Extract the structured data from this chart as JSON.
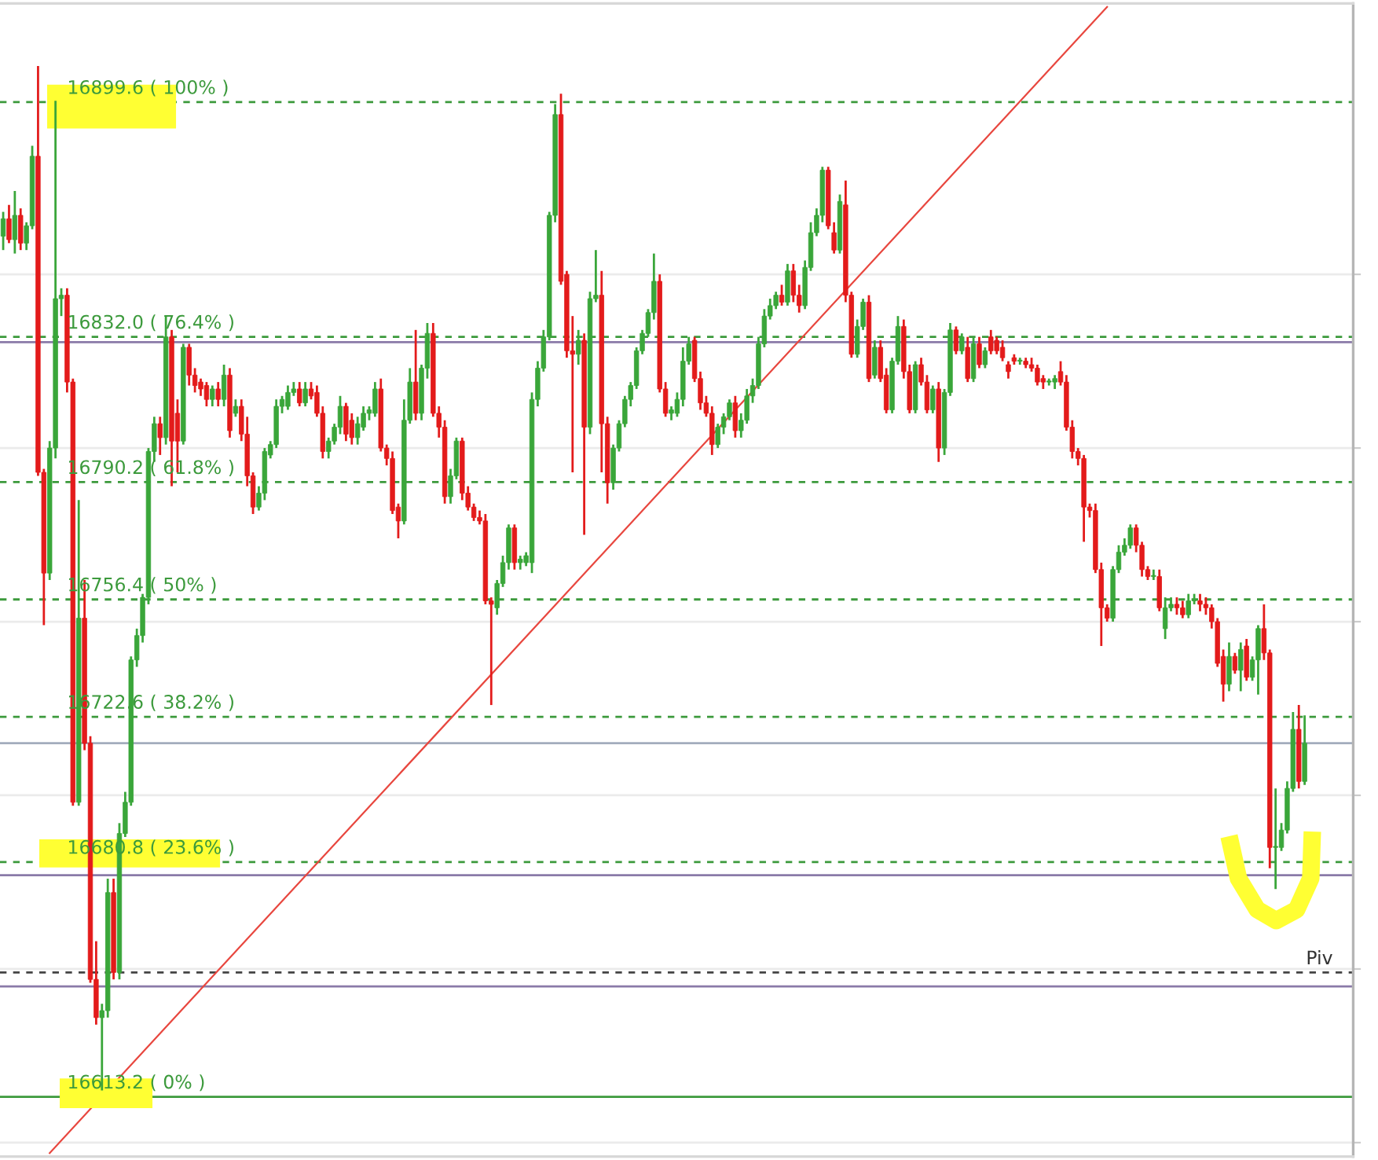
{
  "chart_data": {
    "type": "candlestick",
    "categories": [
      null,
      null,
      null,
      null,
      null,
      null,
      null,
      null,
      null,
      null,
      null,
      null,
      null,
      null,
      null,
      null,
      null,
      null,
      null,
      null,
      null,
      null,
      null,
      null,
      null,
      null,
      null,
      null,
      null,
      null,
      null,
      null,
      null,
      null,
      null,
      null,
      null,
      null,
      null,
      null,
      null,
      null,
      null,
      null,
      null,
      null,
      null,
      null,
      null,
      null,
      null,
      null,
      null,
      null,
      null,
      null,
      null,
      null,
      null,
      null,
      null,
      null,
      null,
      null,
      null,
      null,
      null,
      null,
      null,
      null,
      null,
      null,
      null,
      null,
      null,
      null,
      null,
      null,
      null,
      null,
      null,
      null,
      null,
      null,
      null,
      null,
      null,
      null,
      null,
      null,
      null,
      null,
      null,
      null,
      null,
      null,
      null,
      null,
      null,
      null,
      null,
      null,
      null,
      null,
      null,
      null,
      null,
      null,
      null,
      null,
      null,
      null,
      null,
      null,
      null,
      null,
      null,
      null,
      null,
      null,
      null,
      null,
      null,
      null,
      null,
      null,
      null,
      null,
      null,
      null,
      null,
      null,
      null,
      null,
      null,
      null,
      null,
      null,
      null,
      null,
      null,
      null,
      null,
      null,
      null,
      null,
      null,
      null,
      null,
      null,
      null,
      null,
      null,
      null,
      null,
      null,
      null,
      null,
      null,
      null,
      null,
      null,
      null,
      null,
      null,
      null,
      null,
      null,
      null,
      null,
      null,
      null,
      null,
      null,
      null,
      null,
      null,
      null,
      null,
      null,
      null,
      null,
      null,
      null,
      null,
      null,
      null,
      null,
      null,
      null,
      null,
      null,
      null,
      null,
      null,
      null,
      null,
      null,
      null,
      null,
      null,
      null,
      null,
      null,
      null,
      null,
      null,
      null,
      null,
      null,
      null,
      null,
      null,
      null,
      null,
      null,
      null,
      null,
      null,
      null,
      null,
      null,
      null,
      null,
      null
    ],
    "ohlc": [
      [
        16861,
        16868,
        16857,
        16866
      ],
      [
        16866,
        16870,
        16859,
        16860
      ],
      [
        16860,
        16874,
        16856,
        16867
      ],
      [
        16867,
        16869,
        16857,
        16859
      ],
      [
        16859,
        16865,
        16857,
        16864
      ],
      [
        16864,
        16887,
        16863,
        16884
      ],
      [
        16884,
        16910,
        16792,
        16793
      ],
      [
        16793,
        16794,
        16749,
        16764
      ],
      [
        16764,
        16802,
        16762,
        16800
      ],
      [
        16800,
        16900,
        16797,
        16843
      ],
      [
        16843,
        16846,
        16838,
        16844
      ],
      [
        16844,
        16846,
        16816,
        16819
      ],
      [
        16819,
        16820,
        16697,
        16698
      ],
      [
        16698,
        16785,
        16697,
        16751
      ],
      [
        16751,
        16762,
        16713,
        16715
      ],
      [
        16715,
        16717,
        16646,
        16647
      ],
      [
        16647,
        16658,
        16634,
        16636
      ],
      [
        16636,
        16640,
        16615,
        16638
      ],
      [
        16638,
        16676,
        16636,
        16672
      ],
      [
        16672,
        16676,
        16647,
        16649
      ],
      [
        16649,
        16692,
        16647,
        16689
      ],
      [
        16689,
        16701,
        16688,
        16698
      ],
      [
        16698,
        16740,
        16697,
        16739
      ],
      [
        16739,
        16748,
        16737,
        16746
      ],
      [
        16746,
        16758,
        16744,
        16757
      ],
      [
        16757,
        16800,
        16755,
        16799
      ],
      [
        16799,
        16809,
        16796,
        16807
      ],
      [
        16807,
        16809,
        16798,
        16803
      ],
      [
        16803,
        16838,
        16801,
        16832
      ],
      [
        16832,
        16834,
        16789,
        16802
      ],
      [
        16810,
        16814,
        16793,
        16802
      ],
      [
        16802,
        16830,
        16801,
        16829
      ],
      [
        16829,
        16830,
        16818,
        16821
      ],
      [
        16821,
        16823,
        16816,
        16818
      ],
      [
        16819,
        16820,
        16815,
        16817
      ],
      [
        16818,
        16819,
        16812,
        16814
      ],
      [
        16814,
        16818,
        16812,
        16817
      ],
      [
        16817,
        16819,
        16812,
        16814
      ],
      [
        16814,
        16824,
        16812,
        16821
      ],
      [
        16821,
        16823,
        16803,
        16805
      ],
      [
        16810,
        16814,
        16809,
        16812
      ],
      [
        16812,
        16814,
        16802,
        16804
      ],
      [
        16804,
        16809,
        16789,
        16792
      ],
      [
        16792,
        16793,
        16781,
        16783
      ],
      [
        16783,
        16789,
        16782,
        16787
      ],
      [
        16787,
        16800,
        16785,
        16799
      ],
      [
        16798,
        16802,
        16797,
        16801
      ],
      [
        16801,
        16814,
        16800,
        16812
      ],
      [
        16812,
        16815,
        16810,
        16814
      ],
      [
        16812,
        16818,
        16811,
        16816
      ],
      [
        16816,
        16819,
        16815,
        16817
      ],
      [
        16817,
        16819,
        16812,
        16813
      ],
      [
        16813,
        16819,
        16812,
        16817
      ],
      [
        16817,
        16819,
        16814,
        16815
      ],
      [
        16816,
        16818,
        16809,
        16810
      ],
      [
        16810,
        16812,
        16797,
        16799
      ],
      [
        16799,
        16803,
        16797,
        16802
      ],
      [
        16802,
        16807,
        16801,
        16806
      ],
      [
        16806,
        16815,
        16804,
        16812
      ],
      [
        16812,
        16813,
        16802,
        16804
      ],
      [
        16808,
        16810,
        16801,
        16803
      ],
      [
        16803,
        16809,
        16801,
        16807
      ],
      [
        16806,
        16812,
        16805,
        16810
      ],
      [
        16810,
        16812,
        16808,
        16811
      ],
      [
        16810,
        16819,
        16809,
        16817
      ],
      [
        16817,
        16820,
        16799,
        16800
      ],
      [
        16800,
        16801,
        16795,
        16797
      ],
      [
        16797,
        16799,
        16781,
        16782
      ],
      [
        16783,
        16784,
        16774,
        16779
      ],
      [
        16779,
        16814,
        16778,
        16808
      ],
      [
        16808,
        16823,
        16807,
        16819
      ],
      [
        16819,
        16834,
        16808,
        16810
      ],
      [
        16810,
        16824,
        16808,
        16823
      ],
      [
        16823,
        16836,
        16820,
        16833
      ],
      [
        16833,
        16836,
        16809,
        16810
      ],
      [
        16810,
        16812,
        16803,
        16806
      ],
      [
        16806,
        16808,
        16784,
        16786
      ],
      [
        16786,
        16794,
        16784,
        16792
      ],
      [
        16792,
        16803,
        16791,
        16802
      ],
      [
        16802,
        16803,
        16785,
        16787
      ],
      [
        16787,
        16789,
        16782,
        16783
      ],
      [
        16783,
        16784,
        16779,
        16780
      ],
      [
        16780,
        16782,
        16778,
        16779
      ],
      [
        16779,
        16781,
        16755,
        16756
      ],
      [
        16756,
        16757,
        16726,
        16755
      ],
      [
        16754,
        16762,
        16752,
        16761
      ],
      [
        16761,
        16769,
        16760,
        16767
      ],
      [
        16767,
        16778,
        16765,
        16777
      ],
      [
        16777,
        16778,
        16765,
        16767
      ],
      [
        16767,
        16769,
        16765,
        16768
      ],
      [
        16767,
        16770,
        16766,
        16769
      ],
      [
        16767,
        16816,
        16764,
        16814
      ],
      [
        16814,
        16825,
        16812,
        16823
      ],
      [
        16823,
        16834,
        16822,
        16832
      ],
      [
        16832,
        16868,
        16831,
        16867
      ],
      [
        16867,
        16899,
        16865,
        16896
      ],
      [
        16896,
        16902,
        16847,
        16848
      ],
      [
        16850,
        16851,
        16826,
        16828
      ],
      [
        16828,
        16838,
        16793,
        16827
      ],
      [
        16827,
        16834,
        16824,
        16831
      ],
      [
        16831,
        16833,
        16775,
        16806
      ],
      [
        16806,
        16845,
        16804,
        16843
      ],
      [
        16843,
        16857,
        16842,
        16844
      ],
      [
        16844,
        16851,
        16793,
        16807
      ],
      [
        16807,
        16809,
        16784,
        16790
      ],
      [
        16790,
        16801,
        16788,
        16800
      ],
      [
        16800,
        16808,
        16799,
        16807
      ],
      [
        16807,
        16815,
        16806,
        16814
      ],
      [
        16814,
        16819,
        16812,
        16818
      ],
      [
        16818,
        16829,
        16817,
        16828
      ],
      [
        16828,
        16834,
        16827,
        16833
      ],
      [
        16833,
        16840,
        16832,
        16839
      ],
      [
        16839,
        16856,
        16837,
        16848
      ],
      [
        16848,
        16850,
        16816,
        16817
      ],
      [
        16817,
        16819,
        16809,
        16810
      ],
      [
        16810,
        16812,
        16808,
        16811
      ],
      [
        16810,
        16816,
        16809,
        16814
      ],
      [
        16814,
        16829,
        16812,
        16825
      ],
      [
        16825,
        16832,
        16824,
        16830
      ],
      [
        16831,
        16832,
        16819,
        16820
      ],
      [
        16820,
        16822,
        16811,
        16813
      ],
      [
        16813,
        16815,
        16809,
        16810
      ],
      [
        16810,
        16812,
        16798,
        16801
      ],
      [
        16801,
        16807,
        16800,
        16806
      ],
      [
        16806,
        16810,
        16804,
        16809
      ],
      [
        16809,
        16814,
        16808,
        16813
      ],
      [
        16813,
        16815,
        16803,
        16805
      ],
      [
        16805,
        16810,
        16803,
        16808
      ],
      [
        16808,
        16817,
        16807,
        16815
      ],
      [
        16815,
        16820,
        16813,
        16818
      ],
      [
        16818,
        16832,
        16817,
        16830
      ],
      [
        16830,
        16840,
        16829,
        16838
      ],
      [
        16838,
        16843,
        16837,
        16841
      ],
      [
        16841,
        16845,
        16840,
        16844
      ],
      [
        16844,
        16847,
        16841,
        16842
      ],
      [
        16842,
        16853,
        16841,
        16851
      ],
      [
        16851,
        16853,
        16842,
        16844
      ],
      [
        16844,
        16847,
        16839,
        16841
      ],
      [
        16841,
        16854,
        16840,
        16852
      ],
      [
        16852,
        16865,
        16851,
        16862
      ],
      [
        16862,
        16869,
        16861,
        16867
      ],
      [
        16867,
        16881,
        16865,
        16880
      ],
      [
        16880,
        16881,
        16863,
        16864
      ],
      [
        16862,
        16865,
        16856,
        16857
      ],
      [
        16857,
        16873,
        16856,
        16871
      ],
      [
        16870,
        16877,
        16842,
        16844
      ],
      [
        16844,
        16845,
        16826,
        16827
      ],
      [
        16827,
        16837,
        16826,
        16835
      ],
      [
        16835,
        16843,
        16834,
        16842
      ],
      [
        16842,
        16844,
        16819,
        16820
      ],
      [
        16821,
        16831,
        16820,
        16829
      ],
      [
        16829,
        16831,
        16819,
        16820
      ],
      [
        16821,
        16823,
        16810,
        16811
      ],
      [
        16811,
        16826,
        16810,
        16825
      ],
      [
        16825,
        16838,
        16824,
        16835
      ],
      [
        16835,
        16837,
        16820,
        16822
      ],
      [
        16822,
        16824,
        16810,
        16811
      ],
      [
        16811,
        16825,
        16810,
        16824
      ],
      [
        16824,
        16826,
        16818,
        16819
      ],
      [
        16819,
        16821,
        16810,
        16811
      ],
      [
        16811,
        16818,
        16810,
        16817
      ],
      [
        16817,
        16819,
        16796,
        16800
      ],
      [
        16800,
        16817,
        16798,
        16816
      ],
      [
        16816,
        16836,
        16815,
        16834
      ],
      [
        16834,
        16835,
        16827,
        16828
      ],
      [
        16828,
        16833,
        16827,
        16832
      ],
      [
        16829,
        16832,
        16819,
        16820
      ],
      [
        16820,
        16832,
        16819,
        16830
      ],
      [
        16830,
        16832,
        16823,
        16824
      ],
      [
        16824,
        16829,
        16823,
        16828
      ],
      [
        16832,
        16834,
        16827,
        16828
      ],
      [
        16831,
        16832,
        16827,
        16828
      ],
      [
        16829,
        16831,
        16825,
        16826
      ],
      [
        16824,
        16825,
        16820,
        16822
      ],
      [
        16826,
        16827,
        16824,
        16825
      ],
      [
        16825,
        16826,
        16824,
        16825
      ],
      [
        16825,
        16826,
        16823,
        16824
      ],
      [
        16824,
        16826,
        16822,
        16823
      ],
      [
        16823,
        16824,
        16818,
        16819
      ],
      [
        16820,
        16821,
        16817,
        16819
      ],
      [
        16819,
        16820,
        16818,
        16819
      ],
      [
        16819,
        16821,
        16817,
        16820
      ],
      [
        16822,
        16825,
        16818,
        16819
      ],
      [
        16819,
        16821,
        16805,
        16806
      ],
      [
        16806,
        16808,
        16797,
        16799
      ],
      [
        16799,
        16800,
        16795,
        16797
      ],
      [
        16797,
        16798,
        16773,
        16783
      ],
      [
        16783,
        16784,
        16780,
        16782
      ],
      [
        16782,
        16784,
        16764,
        16765
      ],
      [
        16765,
        16767,
        16743,
        16754
      ],
      [
        16754,
        16755,
        16750,
        16751
      ],
      [
        16751,
        16766,
        16750,
        16765
      ],
      [
        16765,
        16772,
        16764,
        16770
      ],
      [
        16770,
        16774,
        16769,
        16772
      ],
      [
        16772,
        16778,
        16771,
        16777
      ],
      [
        16777,
        16778,
        16770,
        16772
      ],
      [
        16772,
        16773,
        16763,
        16765
      ],
      [
        16765,
        16766,
        16762,
        16763
      ],
      [
        16763,
        16765,
        16762,
        16763
      ],
      [
        16763,
        16765,
        16753,
        16754
      ],
      [
        16748,
        16757,
        16745,
        16754
      ],
      [
        16754,
        16757,
        16753,
        16755
      ],
      [
        16755,
        16757,
        16752,
        16754
      ],
      [
        16754,
        16756,
        16751,
        16752
      ],
      [
        16752,
        16758,
        16751,
        16756
      ],
      [
        16756,
        16758,
        16755,
        16756
      ],
      [
        16756,
        16758,
        16753,
        16755
      ],
      [
        16755,
        16757,
        16752,
        16754
      ],
      [
        16754,
        16755,
        16748,
        16750
      ],
      [
        16750,
        16751,
        16737,
        16738
      ],
      [
        16740,
        16742,
        16727,
        16732
      ],
      [
        16732,
        16744,
        16730,
        16740
      ],
      [
        16740,
        16741,
        16735,
        16736
      ],
      [
        16736,
        16744,
        16730,
        16742
      ],
      [
        16743,
        16745,
        16733,
        16734
      ],
      [
        16734,
        16740,
        16733,
        16739
      ],
      [
        16739,
        16749,
        16729,
        16748
      ],
      [
        16748,
        16755,
        16739,
        16741
      ],
      [
        16741,
        16742,
        16679,
        16685
      ],
      [
        16685,
        16702,
        16673,
        16685
      ],
      [
        16685,
        16692,
        16684,
        16690
      ],
      [
        16690,
        16704,
        16689,
        16702
      ],
      [
        16702,
        16724,
        16701,
        16719
      ],
      [
        16719,
        16726,
        16702,
        16704
      ],
      [
        16704,
        16723,
        16703,
        16715
      ]
    ],
    "colors": [
      "#3aa63a",
      "#e31b1b",
      "#3aa63a",
      "#e31b1b",
      "#3aa63a",
      "#3aa63a",
      "#e31b1b",
      "#e31b1b",
      "#3aa63a",
      "#3aa63a",
      "#3aa63a",
      "#e31b1b",
      "#e31b1b",
      "#3aa63a",
      "#e31b1b",
      "#e31b1b",
      "#e31b1b",
      "#3aa63a",
      "#3aa63a",
      "#e31b1b",
      "#3aa63a",
      "#3aa63a",
      "#3aa63a",
      "#3aa63a",
      "#3aa63a",
      "#3aa63a",
      "#3aa63a",
      "#e31b1b",
      "#3aa63a",
      "#e31b1b",
      "#e31b1b",
      "#3aa63a",
      "#e31b1b",
      "#e31b1b",
      "#e31b1b",
      "#e31b1b",
      "#3aa63a",
      "#e31b1b",
      "#3aa63a",
      "#e31b1b",
      "#3aa63a",
      "#e31b1b",
      "#e31b1b",
      "#e31b1b",
      "#3aa63a",
      "#3aa63a",
      "#3aa63a",
      "#3aa63a",
      "#3aa63a",
      "#3aa63a",
      "#3aa63a",
      "#e31b1b",
      "#3aa63a",
      "#e31b1b",
      "#e31b1b",
      "#e31b1b",
      "#3aa63a",
      "#3aa63a",
      "#3aa63a",
      "#e31b1b",
      "#e31b1b",
      "#3aa63a",
      "#3aa63a",
      "#3aa63a",
      "#3aa63a",
      "#e31b1b",
      "#e31b1b",
      "#e31b1b",
      "#e31b1b",
      "#3aa63a",
      "#3aa63a",
      "#e31b1b",
      "#3aa63a",
      "#3aa63a",
      "#e31b1b",
      "#e31b1b",
      "#e31b1b",
      "#3aa63a",
      "#3aa63a",
      "#e31b1b",
      "#e31b1b",
      "#e31b1b",
      "#e31b1b",
      "#e31b1b",
      "#e31b1b",
      "#3aa63a",
      "#3aa63a",
      "#3aa63a",
      "#e31b1b",
      "#3aa63a",
      "#3aa63a",
      "#3aa63a",
      "#3aa63a",
      "#3aa63a",
      "#3aa63a",
      "#3aa63a",
      "#e31b1b",
      "#e31b1b",
      "#e31b1b",
      "#3aa63a",
      "#e31b1b",
      "#3aa63a",
      "#3aa63a",
      "#e31b1b",
      "#e31b1b",
      "#3aa63a",
      "#3aa63a",
      "#3aa63a",
      "#3aa63a",
      "#3aa63a",
      "#3aa63a",
      "#3aa63a",
      "#3aa63a",
      "#e31b1b",
      "#e31b1b",
      "#3aa63a",
      "#3aa63a",
      "#3aa63a",
      "#3aa63a",
      "#e31b1b",
      "#e31b1b",
      "#e31b1b",
      "#e31b1b",
      "#3aa63a",
      "#3aa63a",
      "#3aa63a",
      "#e31b1b",
      "#3aa63a",
      "#3aa63a",
      "#3aa63a",
      "#3aa63a",
      "#3aa63a",
      "#3aa63a",
      "#3aa63a",
      "#e31b1b",
      "#3aa63a",
      "#e31b1b",
      "#e31b1b",
      "#3aa63a",
      "#3aa63a",
      "#3aa63a",
      "#3aa63a",
      "#e31b1b",
      "#e31b1b",
      "#3aa63a",
      "#e31b1b",
      "#e31b1b",
      "#3aa63a",
      "#3aa63a",
      "#e31b1b",
      "#3aa63a",
      "#e31b1b",
      "#e31b1b",
      "#3aa63a",
      "#3aa63a",
      "#e31b1b",
      "#e31b1b",
      "#3aa63a",
      "#e31b1b",
      "#e31b1b",
      "#3aa63a",
      "#e31b1b",
      "#3aa63a",
      "#3aa63a",
      "#e31b1b",
      "#3aa63a",
      "#e31b1b",
      "#3aa63a",
      "#e31b1b",
      "#3aa63a",
      "#e31b1b",
      "#e31b1b",
      "#e31b1b",
      "#e31b1b",
      "#e31b1b",
      "#3aa63a",
      "#e31b1b",
      "#e31b1b",
      "#e31b1b",
      "#e31b1b",
      "#3aa63a",
      "#3aa63a",
      "#e31b1b",
      "#e31b1b",
      "#e31b1b",
      "#e31b1b",
      "#e31b1b",
      "#e31b1b",
      "#e31b1b",
      "#e31b1b",
      "#e31b1b",
      "#3aa63a",
      "#3aa63a",
      "#3aa63a",
      "#3aa63a",
      "#e31b1b",
      "#e31b1b",
      "#e31b1b",
      "#3aa63a",
      "#e31b1b",
      "#3aa63a",
      "#3aa63a",
      "#e31b1b",
      "#e31b1b",
      "#3aa63a",
      "#3aa63a",
      "#e31b1b",
      "#e31b1b",
      "#e31b1b",
      "#e31b1b",
      "#e31b1b",
      "#3aa63a",
      "#e31b1b",
      "#3aa63a",
      "#e31b1b",
      "#3aa63a",
      "#3aa63a",
      "#e31b1b",
      "#e31b1b",
      "#3aa63a",
      "#3aa63a",
      "#3aa63a",
      "#3aa63a",
      "#e31b1b",
      "#3aa63a"
    ],
    "series": [
      {
        "type": "line",
        "color": "#e8473f",
        "values": [
          null,
          null,
          null,
          null,
          null,
          null,
          null,
          null,
          16597,
          null,
          null,
          null,
          null,
          null,
          null,
          null,
          null,
          null,
          null,
          null,
          null,
          null,
          null,
          null,
          null,
          null,
          null,
          null,
          null,
          null,
          null,
          null,
          null,
          null,
          null,
          null,
          null,
          null,
          null,
          null,
          null,
          null,
          null,
          null,
          null,
          null,
          null,
          null,
          null,
          null,
          null,
          null,
          null,
          null,
          null,
          null,
          null,
          null,
          null,
          null,
          null,
          null,
          null,
          null,
          null,
          null,
          null,
          null,
          null,
          null,
          null,
          null,
          null,
          null,
          null,
          null,
          null,
          null,
          null,
          null,
          null,
          null,
          null,
          null,
          null,
          null,
          null,
          null,
          null,
          null,
          null,
          null,
          null,
          null,
          null,
          null,
          null,
          null,
          null,
          null,
          null,
          null,
          null,
          null,
          null,
          null,
          null,
          null,
          null,
          null,
          null,
          null,
          null,
          null,
          null,
          null,
          null,
          null,
          null,
          null,
          null,
          null,
          null,
          null,
          null,
          null,
          null,
          null,
          null,
          null,
          null,
          null,
          null,
          null,
          null,
          null,
          null,
          null,
          null,
          null,
          null,
          null,
          null,
          null,
          null,
          null,
          null,
          null,
          null,
          null,
          null,
          null,
          null,
          null,
          null,
          null,
          null,
          null,
          null,
          null,
          null,
          null,
          null,
          null,
          null,
          null,
          null,
          null,
          null,
          null,
          null,
          null,
          null,
          null,
          null,
          null,
          null,
          null,
          null,
          null,
          null,
          null,
          null,
          null,
          null,
          null,
          null,
          null,
          null,
          null,
          16927,
          null,
          null,
          null,
          null,
          null,
          null,
          null,
          null,
          null,
          null,
          null,
          null,
          null,
          null,
          null,
          null,
          null,
          null,
          null,
          null,
          null,
          null,
          null,
          null,
          null,
          null,
          null,
          null,
          null,
          null,
          null,
          null,
          null,
          null
        ]
      }
    ],
    "ylim": [
      16596,
      16928
    ],
    "yticks": [
      {
        "value": 16600,
        "label": null
      },
      {
        "value": 16650,
        "label": null
      },
      {
        "value": 16700,
        "label": null
      },
      {
        "value": 16750,
        "label": null
      },
      {
        "value": 16800,
        "label": null
      },
      {
        "value": 16850,
        "label": null
      }
    ],
    "ref_lines": [
      {
        "axis": "y",
        "value": 16899.6,
        "label": "16899.6 ( 100% )",
        "color": "#3c9a3c",
        "line_style": "dashed"
      },
      {
        "axis": "y",
        "value": 16832.0,
        "label": "16832.0 ( 76.4% )",
        "color": "#3c9a3c",
        "line_style": "dashed"
      },
      {
        "axis": "y",
        "value": 16790.2,
        "label": "16790.2 ( 61.8% )",
        "color": "#3c9a3c",
        "line_style": "dashed"
      },
      {
        "axis": "y",
        "value": 16756.4,
        "label": "16756.4 ( 50% )",
        "color": "#3c9a3c",
        "line_style": "dashed"
      },
      {
        "axis": "y",
        "value": 16722.6,
        "label": "16722.6 ( 38.2% )",
        "color": "#3c9a3c",
        "line_style": "dashed"
      },
      {
        "axis": "y",
        "value": 16680.8,
        "label": "16680.8 ( 23.6% )",
        "color": "#3c9a3c",
        "line_style": "dashed"
      },
      {
        "axis": "y",
        "value": 16613.2,
        "label": "16613.2 ( 0% )",
        "color": "#3c9a3c",
        "line_style": "solid"
      },
      {
        "axis": "y",
        "value": 16830.5,
        "color": "#8a7aa8",
        "line_style": "solid"
      },
      {
        "axis": "y",
        "value": 16677,
        "color": "#8a7aa8",
        "line_style": "solid"
      },
      {
        "axis": "y",
        "value": 16645,
        "color": "#8a7aa8",
        "line_style": "solid"
      },
      {
        "axis": "y",
        "value": 16715,
        "color": "#a3adbd",
        "line_style": "solid"
      },
      {
        "axis": "y",
        "value": 16649,
        "color": "#444444",
        "line_style": "dashed"
      }
    ],
    "annotations": [
      "Piv"
    ],
    "grid": "y",
    "legend": false
  }
}
